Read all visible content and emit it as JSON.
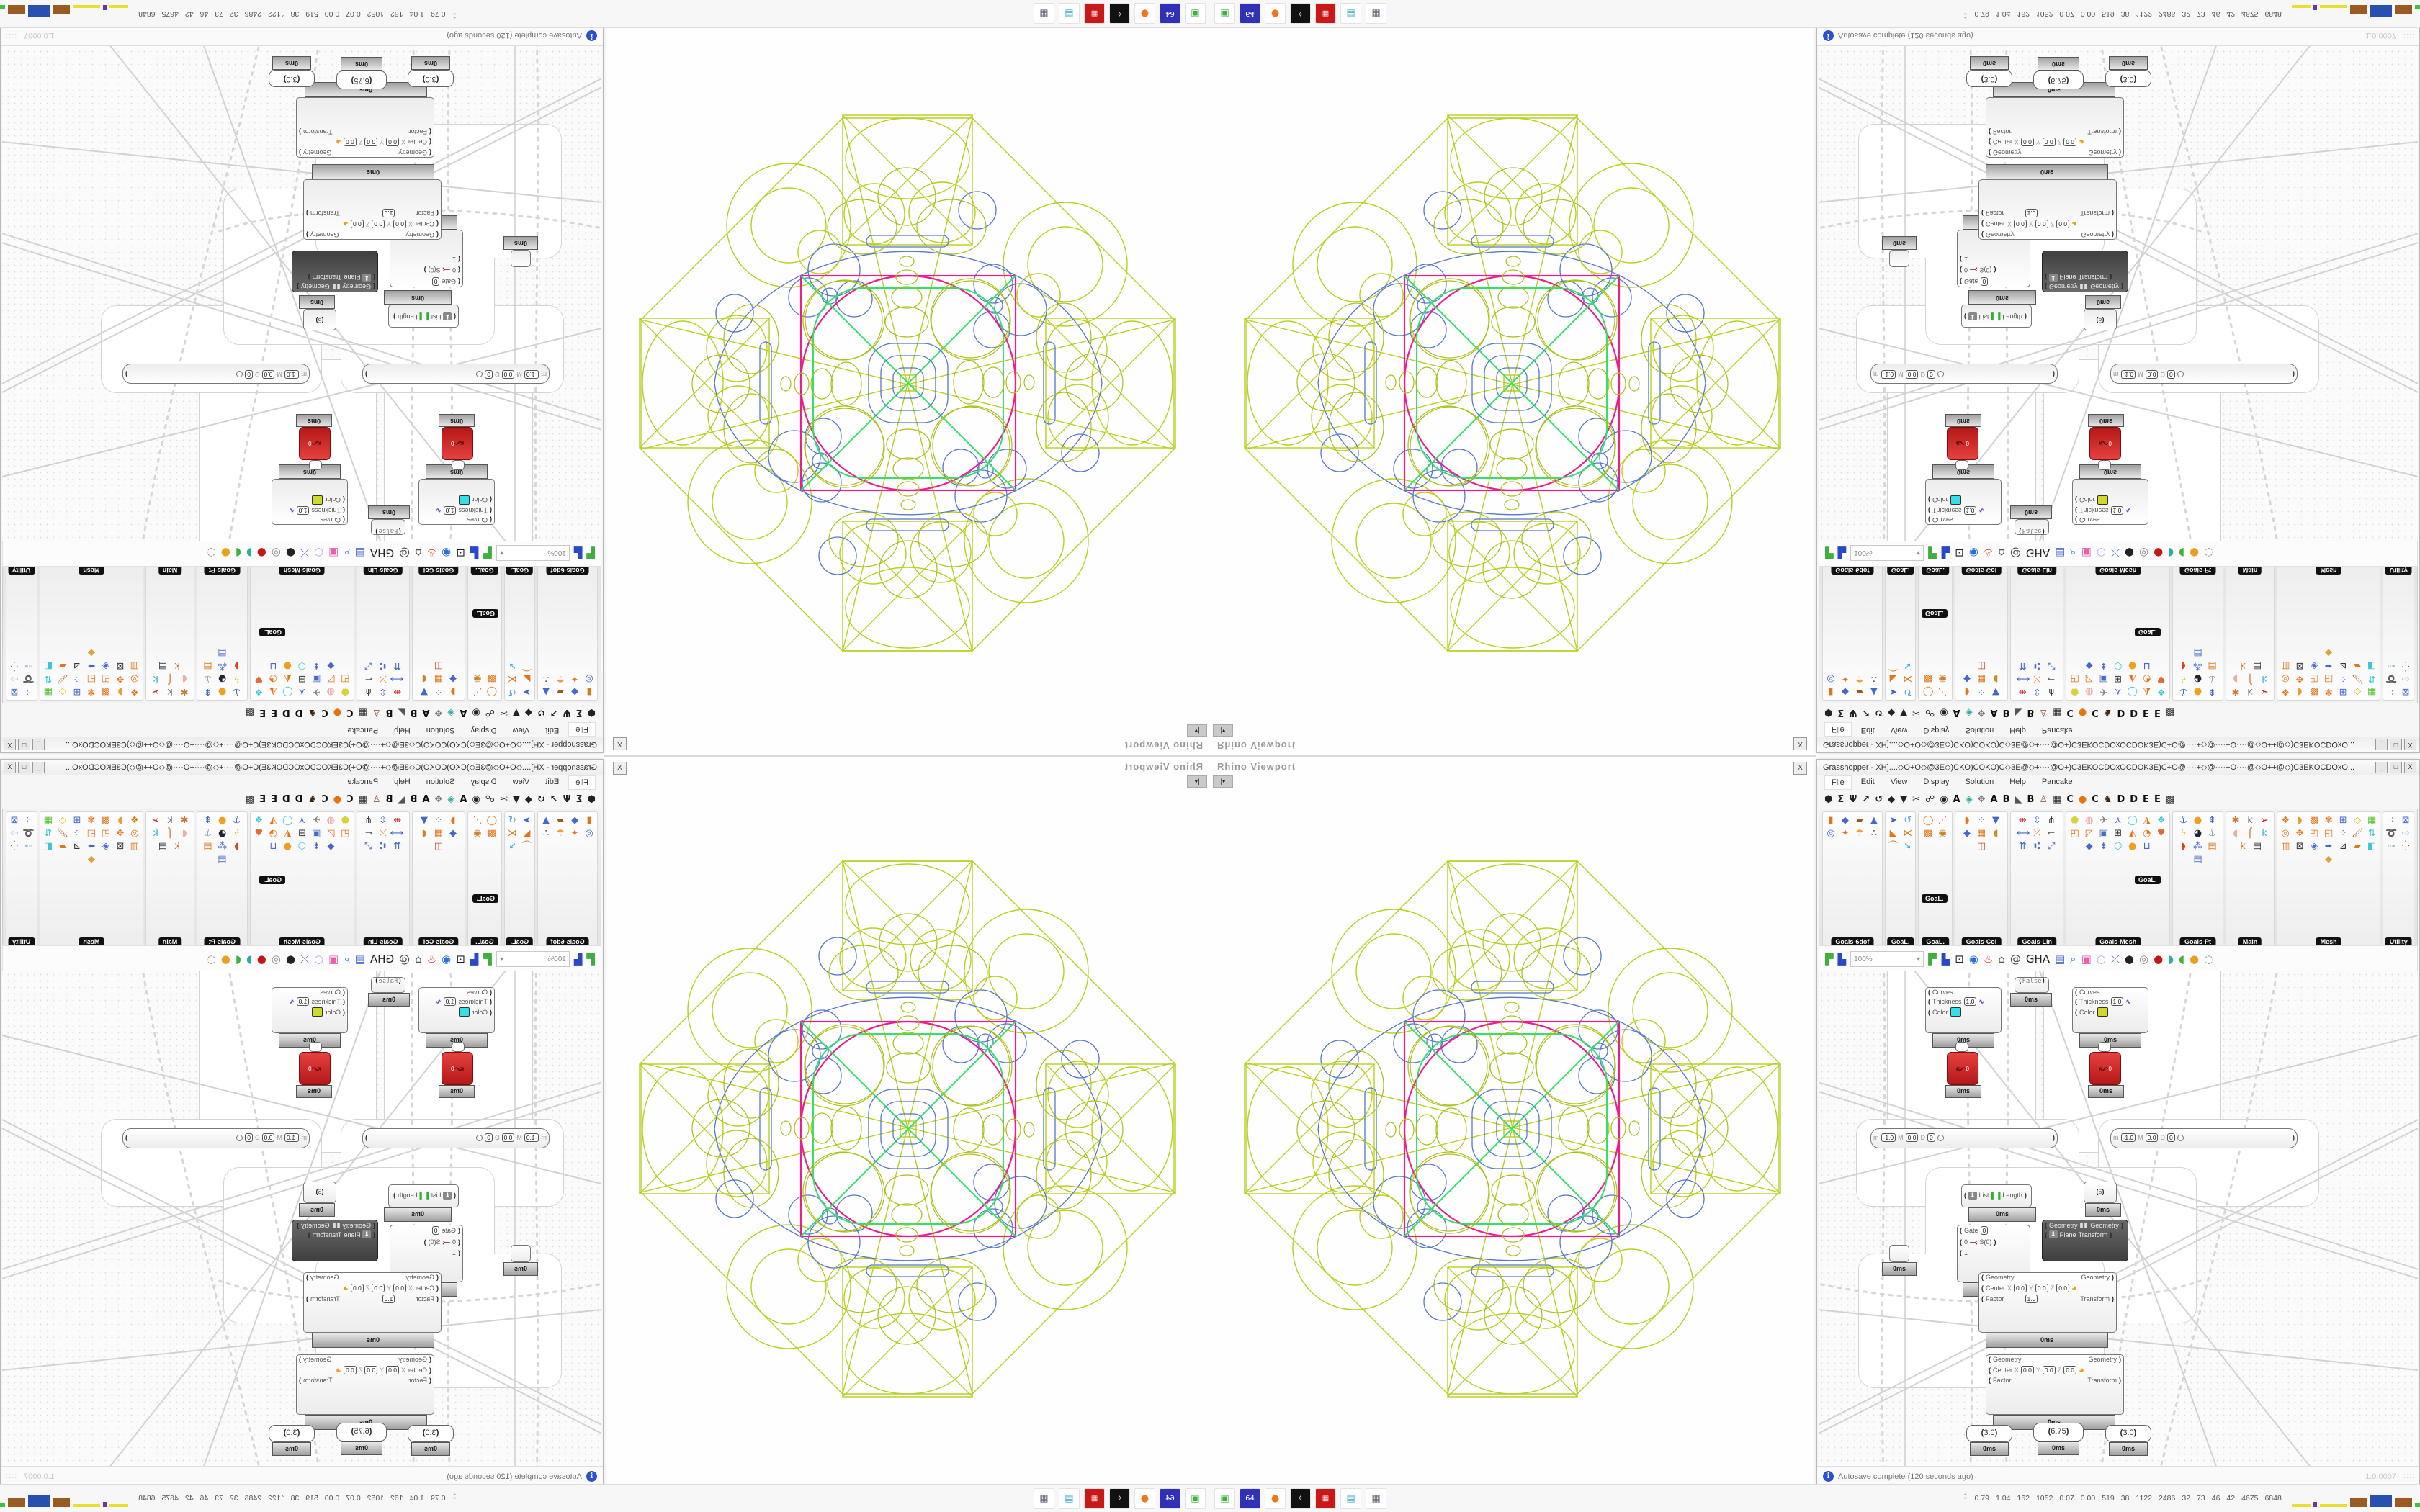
{
  "window": {
    "title": "Grasshopper - XH]....◇O+O◇@3E◇)CKO)COKO)C◇3E@◇+····@O+)C3EKOCDOxOCDOK3E)C+O@····+◇@····+O····@◇O++@◇)C3EKOCDOxO...",
    "min": "_",
    "max": "□",
    "close": "X",
    "float_close": "X"
  },
  "menu": {
    "items": [
      "File",
      "Edit",
      "View",
      "Display",
      "Solution",
      "Help",
      "Pancake"
    ]
  },
  "tabs": {
    "items": [
      {
        "g": "⬢",
        "c": "#222"
      },
      {
        "g": "Σ",
        "c": "#222"
      },
      {
        "g": "Ψ",
        "c": "#222"
      },
      {
        "g": "↗",
        "c": "#222"
      },
      {
        "g": "↺",
        "c": "#222"
      },
      {
        "g": "◆",
        "c": "#222"
      },
      {
        "g": "▼",
        "c": "#222"
      },
      {
        "g": "✂",
        "c": "#222"
      },
      {
        "g": "☍",
        "c": "#222"
      },
      {
        "g": "◉",
        "c": "#222"
      },
      {
        "g": "A",
        "c": "#111"
      },
      {
        "g": "◈",
        "c": "#2fae9b"
      },
      {
        "g": "✥",
        "c": "#777"
      },
      {
        "g": "A",
        "c": "#111"
      },
      {
        "g": "B",
        "c": "#111"
      },
      {
        "g": "◣",
        "c": "#555"
      },
      {
        "g": "B",
        "c": "#111"
      },
      {
        "g": "♙",
        "c": "#865"
      },
      {
        "g": "▦",
        "c": "#333"
      },
      {
        "g": "C",
        "c": "#111"
      },
      {
        "g": "●",
        "c": "#e8730c"
      },
      {
        "g": "C",
        "c": "#111"
      },
      {
        "g": "♞",
        "c": "#3a2416"
      },
      {
        "g": "D",
        "c": "#111"
      },
      {
        "g": "D",
        "c": "#111"
      },
      {
        "g": "E",
        "c": "#111"
      },
      {
        "g": "E",
        "c": "#111"
      },
      {
        "g": "▩",
        "c": "#333"
      }
    ]
  },
  "panel": {
    "floating_label": "GoaL.",
    "columns": [
      {
        "label": "Goals-6dof",
        "flex": "1.25",
        "icons": [
          {
            "g": "▮",
            "c": "#e0761a"
          },
          {
            "g": "◆",
            "c": "#4868c8"
          },
          {
            "g": "▰",
            "c": "#9a5b22"
          },
          {
            "g": "▲",
            "c": "#4868c8"
          },
          {
            "g": "◎",
            "c": "#4868c8"
          },
          {
            "g": "✦",
            "c": "#e0761a"
          },
          {
            "g": "☂",
            "c": "#e8a23c"
          },
          {
            "g": "∴",
            "c": "#333"
          }
        ]
      },
      {
        "label": "GoaL.",
        "flex": "0.62",
        "icons": [
          {
            "g": "➤",
            "c": "#4868c8"
          },
          {
            "g": "↺",
            "c": "#55a0d8"
          },
          {
            "g": "◣",
            "c": "#e0761a"
          },
          {
            "g": "⋉",
            "c": "#e0761a"
          },
          {
            "g": "⌒",
            "c": "#c8862a"
          },
          {
            "g": "➘",
            "c": "#3ab0e8"
          }
        ]
      },
      {
        "label": "GoaL.",
        "flex": "0.68",
        "icons": [
          {
            "g": "◯",
            "c": "#e0761a"
          },
          {
            "g": "⋰",
            "c": "#e0761a"
          },
          {
            "g": "▩",
            "c": "#e0761a"
          },
          {
            "g": "◉",
            "c": "#c8862a"
          }
        ]
      },
      {
        "label": "Goals-Col",
        "flex": "1.1",
        "icons": [
          {
            "g": "◗",
            "c": "#e0761a"
          },
          {
            "g": "⁘",
            "c": "#4868c8"
          },
          {
            "g": "▼",
            "c": "#4868c8"
          },
          {
            "g": "◆",
            "c": "#4868c8"
          },
          {
            "g": "▦",
            "c": "#e0761a"
          },
          {
            "g": "◖",
            "c": "#c8862a"
          },
          {
            "g": "◫",
            "c": "#cc4422"
          }
        ]
      },
      {
        "label": "Goals-Lin",
        "flex": "1.1",
        "icons": [
          {
            "g": "⇹",
            "c": "#cc2020"
          },
          {
            "g": "⇳",
            "c": "#4868c8"
          },
          {
            "g": "⋔",
            "c": "#333"
          },
          {
            "g": "⟷",
            "c": "#4868c8"
          },
          {
            "g": "⤫",
            "c": "#e0761a"
          },
          {
            "g": "⌐",
            "c": "#333"
          },
          {
            "g": "⇈",
            "c": "#4868c8"
          },
          {
            "g": "⑆",
            "c": "#4868c8"
          },
          {
            "g": "⤢",
            "c": "#4868c8"
          }
        ]
      },
      {
        "label": "Goals-Mesh",
        "flex": "2.2",
        "icons": [
          {
            "g": "⬟",
            "c": "#d8d23a"
          },
          {
            "g": "◍",
            "c": "#e8a0a0"
          },
          {
            "g": "✈",
            "c": "#888"
          },
          {
            "g": "⋏",
            "c": "#4868c8"
          },
          {
            "g": "◯",
            "c": "#39c7d6"
          },
          {
            "g": "◮",
            "c": "#e0761a"
          },
          {
            "g": "❖",
            "c": "#39c7d6"
          },
          {
            "g": "◰",
            "c": "#e0761a"
          },
          {
            "g": "◸",
            "c": "#e0761a"
          },
          {
            "g": "▣",
            "c": "#4868c8"
          },
          {
            "g": "⊞",
            "c": "#333"
          },
          {
            "g": "◭",
            "c": "#e0761a"
          },
          {
            "g": "◔",
            "c": "#e0761a"
          },
          {
            "g": "♥",
            "c": "#e06a3a"
          },
          {
            "g": "◆",
            "c": "#4868c8"
          },
          {
            "g": "⇟",
            "c": "#4868c8"
          },
          {
            "g": "⬡",
            "c": "#39c7d6"
          },
          {
            "g": "●",
            "c": "#f0a020"
          },
          {
            "g": "⊔",
            "c": "#4868c8"
          }
        ]
      },
      {
        "label": "Goals-Pt",
        "flex": "1.05",
        "icons": [
          {
            "g": "⚓",
            "c": "#4868c8"
          },
          {
            "g": "●",
            "c": "#f0a020"
          },
          {
            "g": "⇞",
            "c": "#4868c8"
          },
          {
            "g": "ϟ",
            "c": "#f0c020"
          },
          {
            "g": "◕",
            "c": "#223",
            "b": "1"
          },
          {
            "g": "⚓",
            "c": "#8aa"
          },
          {
            "g": "◗",
            "c": "#e04020"
          },
          {
            "g": "⁂",
            "c": "#4868c8"
          },
          {
            "g": "▤",
            "c": "#e0761a"
          },
          {
            "g": "▤",
            "c": "#4868c8"
          }
        ]
      },
      {
        "label": "Main",
        "flex": "1.0",
        "icons": [
          {
            "g": "✱",
            "c": "#c87838"
          },
          {
            "g": "ƙ",
            "c": "#777"
          },
          {
            "g": "➢",
            "c": "#cc2020"
          },
          {
            "g": "◖",
            "c": "#e8b0a0"
          },
          {
            "g": "⌠",
            "c": "#c87838"
          },
          {
            "g": "ƙ",
            "c": "#3ab0d8"
          },
          {
            "g": "ƙ",
            "c": "#c87838"
          },
          {
            "g": "▤",
            "c": "#333"
          }
        ]
      },
      {
        "label": "Mesh",
        "flex": "2.2",
        "icons": [
          {
            "g": "❖",
            "c": "#e0761a"
          },
          {
            "g": "◗",
            "c": "#e0a23c"
          },
          {
            "g": "▩",
            "c": "#e0761a"
          },
          {
            "g": "✾",
            "c": "#e0761a"
          },
          {
            "g": "⊞",
            "c": "#4868c8"
          },
          {
            "g": "◇",
            "c": "#e8c020"
          },
          {
            "g": "▦",
            "c": "#55c030"
          },
          {
            "g": "◎",
            "c": "#e0761a"
          },
          {
            "g": "✥",
            "c": "#e0761a"
          },
          {
            "g": "◰",
            "c": "#e0761a"
          },
          {
            "g": "◱",
            "c": "#e0761a"
          },
          {
            "g": "⁘",
            "c": "#4868c8"
          },
          {
            "g": "🖌",
            "c": "#c87838"
          },
          {
            "g": "⇅",
            "c": "#39c7d6"
          },
          {
            "g": "▥",
            "c": "#e0761a"
          },
          {
            "g": "⊠",
            "c": "#333"
          },
          {
            "g": "◈",
            "c": "#4868c8"
          },
          {
            "g": "➨",
            "c": "#4868c8"
          },
          {
            "g": "⊿",
            "c": "#333"
          },
          {
            "g": "▰",
            "c": "#e0761a"
          },
          {
            "g": "◧",
            "c": "#39c7d6"
          },
          {
            "g": "◆",
            "c": "#e0a23c"
          }
        ]
      },
      {
        "label": "Utility",
        "flex": "0.62",
        "icons": [
          {
            "g": "⁖",
            "c": "#4868c8"
          },
          {
            "g": "⊠",
            "c": "#4868c8"
          },
          {
            "g": "➰",
            "c": "#e0761a"
          },
          {
            "g": "⇨",
            "c": "#9ab8e8"
          },
          {
            "g": "⇢",
            "c": "#9ab8e8"
          },
          {
            "g": "⁛",
            "c": "#333"
          }
        ]
      }
    ]
  },
  "toolbar": {
    "zoom": "100%",
    "icons": [
      {
        "g": "▛",
        "c": "#3fae3f"
      },
      {
        "g": "▙",
        "c": "#2848c8"
      },
      {
        "g": "⊡",
        "c": "#222"
      },
      {
        "g": "◉",
        "c": "#2870d8"
      },
      {
        "g": "♨",
        "c": "#d83020"
      },
      {
        "g": "⌂",
        "c": "#555"
      },
      {
        "g": "@",
        "c": "#444"
      },
      {
        "g": "GHA",
        "c": "#222"
      },
      {
        "g": "▤",
        "c": "#4868c8"
      },
      {
        "g": "⌕",
        "c": "#2870d8"
      },
      {
        "g": "▣",
        "c": "#e860a8"
      },
      {
        "g": "○",
        "c": "#b8a8e8"
      },
      {
        "g": "⤫",
        "c": "#4868c8"
      },
      {
        "g": "●",
        "c": "#222"
      },
      {
        "g": "◎",
        "c": "#888"
      },
      {
        "g": "●",
        "c": "#c01818"
      },
      {
        "g": "◗",
        "c": "#2fae9b"
      },
      {
        "g": "◖",
        "c": "#3fae3f"
      },
      {
        "g": "●",
        "c": "#e8a020"
      },
      {
        "g": "◌",
        "c": "#888"
      }
    ]
  },
  "viewport": {
    "label": "Rhino Viewport",
    "tab_button": "|▾"
  },
  "canvas": {
    "profiler": "0ms",
    "toggle_value": "False",
    "panel_value": "6",
    "sliders": {
      "a": "3.0",
      "b": "6.75",
      "c": "3.0"
    },
    "preview": {
      "in1": "Curves",
      "in2": "Thickness",
      "thickness": "1.0",
      "in3": "Color",
      "swatch1": "#35dfe8",
      "swatch2": "#cfd92b"
    },
    "scale": {
      "in1": "Geometry",
      "center": "Center",
      "x": "X",
      "y": "Y",
      "z": "Z",
      "v0": "0.0",
      "factor": "Factor",
      "fv": "1.0",
      "out1": "Geometry",
      "out2": "Transform"
    },
    "mirror": {
      "in1": "Geometry",
      "in2": "Plane",
      "out1": "Geometry",
      "out2": "Transform",
      "pause": "▮▮"
    },
    "gate": {
      "l": "Gate",
      "gv": "0",
      "a": "0",
      "b": "1",
      "out": "S(0)"
    },
    "list": {
      "in": "List",
      "out": "Length"
    },
    "md": {
      "m": "m",
      "mv": "-1.0",
      "M": "M",
      "Mv": "0.0",
      "D": "D",
      "Dv": "0",
      "t": "1"
    },
    "red_out": "0"
  },
  "ghstatus": {
    "autosave": "Autosave complete (120 seconds ago)",
    "version": "1.0.0007",
    "grip": "∷∷"
  },
  "taskbar": {
    "icons": [
      {
        "g": "▣",
        "c": "#3fae3f",
        "name": "console-icon"
      },
      {
        "g": "64",
        "c": "#fff",
        "bg": "#3030b8",
        "name": "floppy64-icon"
      },
      {
        "g": "●",
        "c": "#f07818",
        "name": "firefox-icon"
      },
      {
        "g": "✧",
        "c": "#fff",
        "bg": "#111",
        "name": "inkscape-icon"
      },
      {
        "g": "▦",
        "c": "#fff",
        "bg": "#c81818",
        "name": "red-grid-icon"
      },
      {
        "g": "▤",
        "c": "#3aa8c8",
        "name": "notepad-icon"
      },
      {
        "g": "▦",
        "c": "#667",
        "name": "calculator-icon"
      }
    ],
    "monitor_glyph": "⌃",
    "stats": [
      "0.79",
      "1.04",
      "162",
      "1052",
      "0.07",
      "0.00",
      "519",
      "38",
      "1122",
      "2486",
      "32",
      "73",
      "46",
      "42",
      "4675",
      "6848"
    ],
    "blocks": [
      {
        "w": 26,
        "h": 4,
        "c": "#e8e030"
      },
      {
        "w": 5,
        "h": 7,
        "c": "#7030b0"
      },
      {
        "w": 38,
        "h": 4,
        "c": "#e8e030"
      },
      {
        "w": 24,
        "h": 13,
        "c": "#9a5b22"
      },
      {
        "w": 30,
        "h": 16,
        "c": "#2850b0"
      },
      {
        "w": 24,
        "h": 13,
        "c": "#9a5b22"
      },
      {
        "w": 32,
        "h": 5,
        "c": "#40c040"
      },
      {
        "w": 28,
        "h": 15,
        "c": "#8a1515"
      }
    ]
  }
}
